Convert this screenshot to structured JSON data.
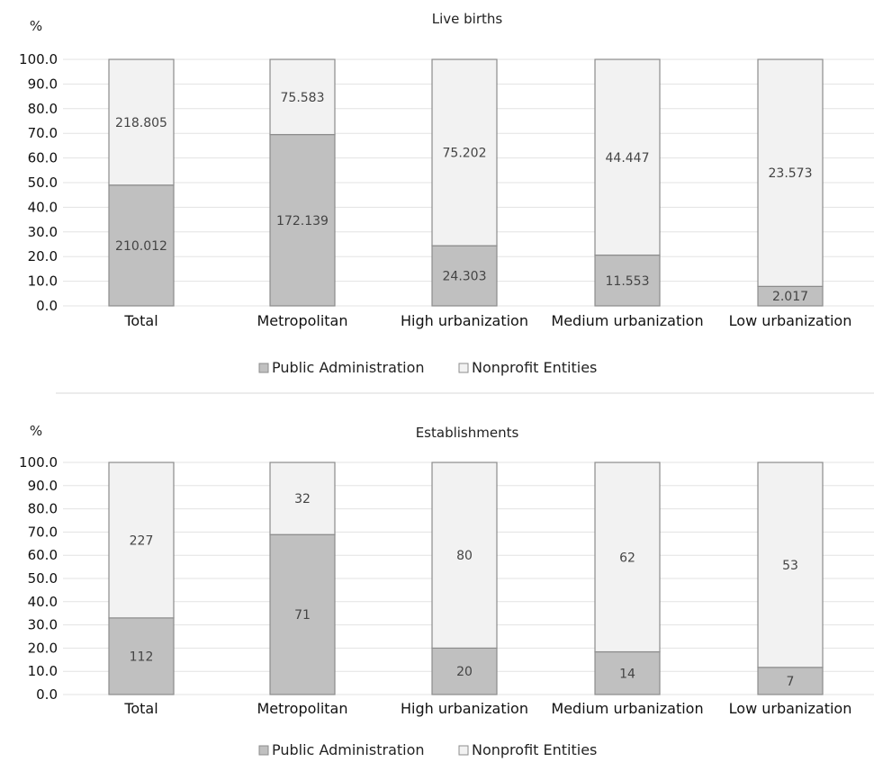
{
  "chart_data": [
    {
      "type": "bar",
      "stacked": true,
      "title": "Live births",
      "ylabel": "%",
      "ylim": [
        0,
        100
      ],
      "yticks": [
        "0.0",
        "10.0",
        "20.0",
        "30.0",
        "40.0",
        "50.0",
        "60.0",
        "70.0",
        "80.0",
        "90.0",
        "100.0"
      ],
      "categories": [
        "Total",
        "Metropolitan",
        "High urbanization",
        "Medium urbanization",
        "Low urbanization"
      ],
      "series": [
        {
          "name": "Public Administration",
          "color": "#c0c0c0",
          "values": [
            49.0,
            69.5,
            24.4,
            20.6,
            7.9
          ],
          "labels": [
            "210.012",
            "172.139",
            "24.303",
            "11.553",
            "2.017"
          ]
        },
        {
          "name": "Nonprofit Entities",
          "color": "#f2f2f2",
          "values": [
            51.0,
            30.5,
            75.6,
            79.4,
            92.1
          ],
          "labels": [
            "218.805",
            "75.583",
            "75.202",
            "44.447",
            "23.573"
          ]
        }
      ],
      "grid": true,
      "legend": "bottom-center"
    },
    {
      "type": "bar",
      "stacked": true,
      "title": "Establishments",
      "ylabel": "%",
      "ylim": [
        0,
        100
      ],
      "yticks": [
        "0.0",
        "10.0",
        "20.0",
        "30.0",
        "40.0",
        "50.0",
        "60.0",
        "70.0",
        "80.0",
        "90.0",
        "100.0"
      ],
      "categories": [
        "Total",
        "Metropolitan",
        "High urbanization",
        "Medium urbanization",
        "Low urbanization"
      ],
      "series": [
        {
          "name": "Public Administration",
          "color": "#c0c0c0",
          "values": [
            33.0,
            68.9,
            20.0,
            18.4,
            11.7
          ],
          "labels": [
            "112",
            "71",
            "20",
            "14",
            "7"
          ]
        },
        {
          "name": "Nonprofit Entities",
          "color": "#f2f2f2",
          "values": [
            67.0,
            31.1,
            80.0,
            81.6,
            88.3
          ],
          "labels": [
            "227",
            "32",
            "80",
            "62",
            "53"
          ]
        }
      ],
      "grid": true,
      "legend": "bottom-center"
    }
  ]
}
